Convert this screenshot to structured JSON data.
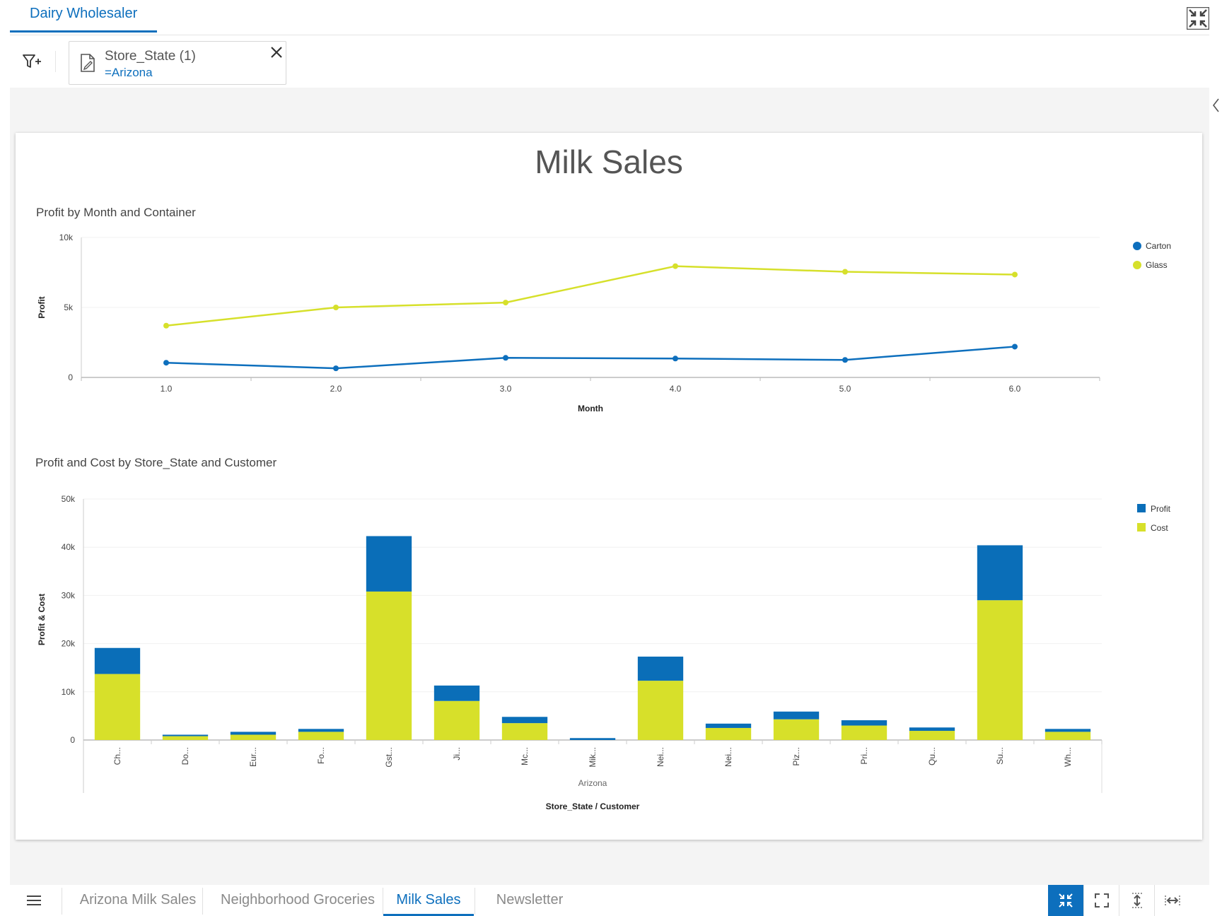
{
  "top_tab": {
    "label": "Dairy Wholesaler"
  },
  "filter": {
    "title": "Store_State (1)",
    "value": "=Arizona"
  },
  "dashboard": {
    "title": "Milk Sales",
    "line_chart_title": "Profit by Month and Container",
    "bar_chart_title": "Profit and Cost by Store_State and Customer"
  },
  "bottom_tabs": [
    {
      "label": "Arizona Milk Sales",
      "active": false
    },
    {
      "label": "Neighborhood Groceries",
      "active": false
    },
    {
      "label": "Milk Sales",
      "active": true
    },
    {
      "label": "Newsletter",
      "active": false
    }
  ],
  "colors": {
    "accent": "#0d6fbd",
    "carton": "#0d6fbd",
    "glass": "#d6e02b",
    "profit": "#0a6eb8",
    "cost": "#d7e02a"
  },
  "chart_data": [
    {
      "type": "line",
      "title": "Profit by Month and Container",
      "xlabel": "Month",
      "ylabel": "Profit",
      "x": [
        1.0,
        2.0,
        3.0,
        4.0,
        5.0,
        6.0
      ],
      "x_tick_labels": [
        "1.0",
        "2.0",
        "3.0",
        "4.0",
        "5.0",
        "6.0"
      ],
      "xlim": [
        0.5,
        6.5
      ],
      "ylim": [
        0,
        10000
      ],
      "y_ticks": [
        0,
        5000,
        10000
      ],
      "y_tick_labels": [
        "0",
        "5k",
        "10k"
      ],
      "legend": "top-right",
      "series": [
        {
          "name": "Carton",
          "values": [
            1050,
            650,
            1400,
            1350,
            1250,
            2200
          ]
        },
        {
          "name": "Glass",
          "values": [
            3700,
            5000,
            5350,
            7950,
            7550,
            7350
          ]
        }
      ]
    },
    {
      "type": "bar",
      "stacked": true,
      "title": "Profit and Cost by Store_State and Customer",
      "xlabel": "Store_State / Customer",
      "ylabel": "Profit & Cost",
      "group_label": "Arizona",
      "categories": [
        "Ch...",
        "Do...",
        "Eur...",
        "Fo...",
        "Gst...",
        "Ji...",
        "Mc...",
        "Mik...",
        "Nei...",
        "Nei...",
        "Piz...",
        "Pri...",
        "Qu...",
        "Su...",
        "Wh..."
      ],
      "ylim": [
        0,
        50000
      ],
      "y_ticks": [
        0,
        10000,
        20000,
        30000,
        40000,
        50000
      ],
      "y_tick_labels": [
        "0",
        "10k",
        "20k",
        "30k",
        "40k",
        "50k"
      ],
      "legend": "top-right",
      "series": [
        {
          "name": "Profit",
          "values": [
            5400,
            300,
            600,
            600,
            11500,
            3200,
            1300,
            400,
            5000,
            900,
            1600,
            1100,
            700,
            11400,
            600
          ]
        },
        {
          "name": "Cost",
          "values": [
            13700,
            800,
            1100,
            1700,
            30800,
            8100,
            3500,
            0,
            12300,
            2500,
            4300,
            3000,
            1900,
            29000,
            1700
          ]
        }
      ]
    }
  ]
}
